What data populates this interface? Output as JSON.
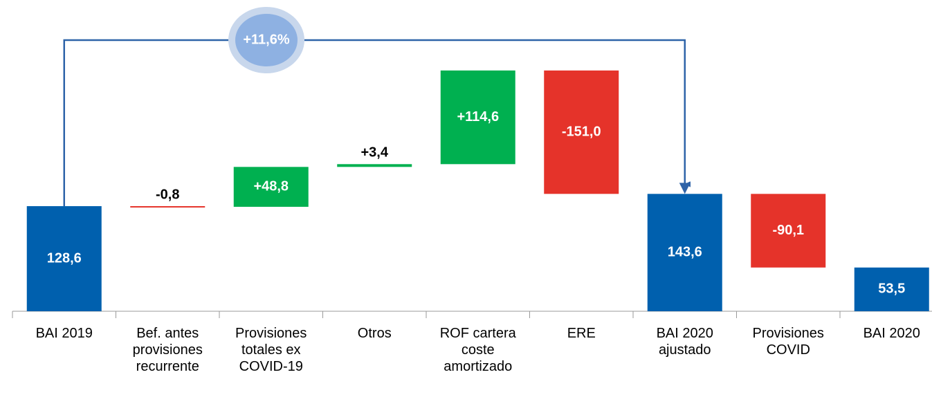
{
  "chart_data": {
    "type": "waterfall",
    "categories": [
      "BAI 2019",
      "Bef. antes provisiones recurrente",
      "Provisiones totales ex COVID-19",
      "Otros",
      "ROF cartera coste amortizado",
      "ERE",
      "BAI 2020 ajustado",
      "Provisiones COVID",
      "BAI 2020"
    ],
    "values": [
      128.6,
      -0.8,
      48.8,
      3.4,
      114.6,
      -151.0,
      143.6,
      -90.1,
      53.5
    ],
    "value_labels": [
      "128,6",
      "-0,8",
      "+48,8",
      "+3,4",
      "+114,6",
      "-151,0",
      "143,6",
      "-90,1",
      "53,5"
    ],
    "measure": [
      "total",
      "relative",
      "relative",
      "relative",
      "relative",
      "relative",
      "total",
      "relative",
      "total"
    ],
    "colors": {
      "total": "#0060ae",
      "increase": "#00b050",
      "decrease": "#e5332a"
    },
    "ylim": [
      0,
      380
    ],
    "annotation": "+11,6%"
  }
}
